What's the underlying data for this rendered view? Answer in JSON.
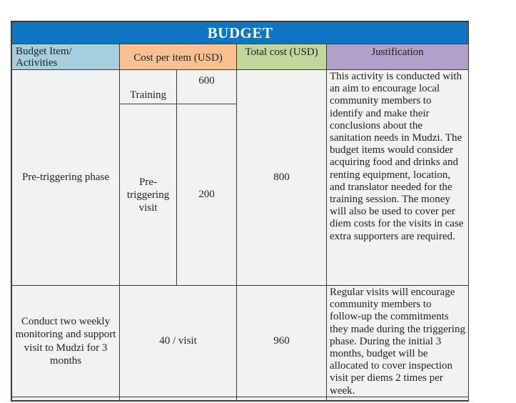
{
  "table": {
    "title": "BUDGET",
    "columns": {
      "budget_item": "Budget Item/\nActivities",
      "cost_per_item": "Cost per item (USD)",
      "total_cost": "Total cost (USD)",
      "justification": "Justification"
    },
    "rows": [
      {
        "activity": "Pre-triggering phase",
        "cost_items": [
          {
            "label": "Training",
            "cost": "600"
          },
          {
            "label": "Pre-triggering visit",
            "cost": "200"
          }
        ],
        "total": "800",
        "justification": "This activity is conducted with an aim to encourage local community members to identify and make their conclusions about the sanitation needs in Mudzi. The budget items would consider acquiring food and drinks and renting equipment, location, and translator needed for the training session. The money will also be used to cover per diem costs for the visits in case extra supporters are required."
      },
      {
        "activity": "Conduct two weekly monitoring and support visit to Mudzi for 3 months",
        "cost": "40 / visit",
        "total": "960",
        "justification": "Regular visits will encourage community members to follow-up the commitments they made during the triggering phase. During the initial 3 months, budget will be allocated to cover inspection visit per diems 2 times per week."
      }
    ]
  },
  "colors": {
    "title_bg": "#0d76c3",
    "title_text": "#ffffff",
    "header_item_bg": "#a6cfdd",
    "header_cost_bg": "#fac090",
    "header_total_bg": "#c3d69b",
    "header_justification_bg": "#b1a0c7",
    "cell_bg": "#f2f2f1",
    "border": "#3a3a3a",
    "text": "#1f1f1f"
  }
}
